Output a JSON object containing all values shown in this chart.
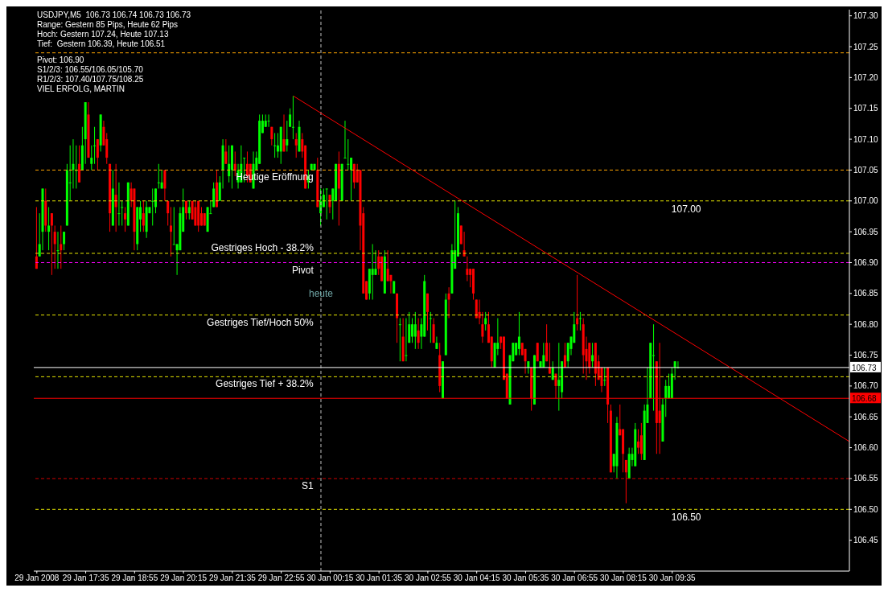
{
  "chart_data": {
    "type": "candlestick",
    "title": "USDJPY,M5  106.73 106.74 106.73 106.73",
    "annotations": [
      "Range: Gestern 85 Pips, Heute 62 Pips",
      "Hoch: Gestern 107.24, Heute 107.13",
      "Tief:  Gestern 106.39, Heute 106.51",
      "Pivot: 106.90",
      "S1/2/3: 106.55/106.05/105.70",
      "R1/2/3: 107.40/107.75/108.25",
      "VIEL ERFOLG, MARTIN",
      {
        "text": "heute",
        "x": "2008-01-30T00:00",
        "y": 106.85
      }
    ],
    "colors": [
      "#ff0000",
      "#00ff00",
      "#00ff00",
      "#ff0000",
      "#00ff00",
      "#ff0000",
      "#ff0000",
      "#00ff00",
      "#ff0000",
      "#00ff00",
      "#00ff00",
      "#00ff00",
      "#00ff00",
      "#00ff00",
      "#ff0000",
      "#00ff00",
      "#00ff00",
      "#ff0000",
      "#00ff00",
      "#00ff00",
      "#ff0000",
      "#00ff00",
      "#ff0000",
      "#ff0000",
      "#ff0000",
      "#00ff00",
      "#ff0000",
      "#00ff00",
      "#00ff00",
      "#ff0000",
      "#00ff00",
      "#ff0000",
      "#ff0000",
      "#00ff00",
      "#00ff00",
      "#ff0000",
      "#00ff00",
      "#00ff00",
      "#00ff00",
      "#00ff00",
      "#00ff00",
      "#00ff00",
      "#ff0000",
      "#ff0000",
      "#ff0000",
      "#00ff00",
      "#00ff00",
      "#00ff00",
      "#00ff00",
      "#ff0000",
      "#00ff00",
      "#ff0000",
      "#ff0000",
      "#ff0000",
      "#ff0000",
      "#ff0000",
      "#00ff00",
      "#00ff00",
      "#00ff00",
      "#ff0000",
      "#00ff00",
      "#00ff00",
      "#ff0000",
      "#00ff00",
      "#00ff00",
      "#ff0000",
      "#00ff00",
      "#00ff00",
      "#00ff00",
      "#ff0000",
      "#ff0000",
      "#00ff00",
      "#00ff00",
      "#00ff00",
      "#00ff00",
      "#00ff00",
      "#00ff00",
      "#ff0000",
      "#00ff00",
      "#00ff00",
      "#00ff00",
      "#ff0000",
      "#00ff00",
      "#00ff00",
      "#00ff00",
      "#ff0000",
      "#00ff00",
      "#ff0000",
      "#ff0000",
      "#00ff00",
      "#00ff00",
      "#00ff00",
      "#ff0000",
      "#00ff00",
      "#00ff00",
      "#00ff00",
      "#ff0000",
      "#00ff00",
      "#00ff00",
      "#ff0000",
      "#00ff00",
      "#00ff00",
      "#00ff00",
      "#00ff00",
      "#ff0000",
      "#ff0000",
      "#ff0000",
      "#ff0000",
      "#ff0000",
      "#00ff00",
      "#00ff00",
      "#00ff00",
      "#ff0000",
      "#ff0000",
      "#00ff00",
      "#ff0000",
      "#ff0000",
      "#00ff00",
      "#ff0000",
      "#00ff00",
      "#ff0000",
      "#00ff00",
      "#00ff00",
      "#00ff00",
      "#00ff00",
      "#ff0000",
      "#00ff00",
      "#00ff00",
      "#ff0000",
      "#00ff00",
      "#ff0000",
      "#00ff00",
      "#ff0000",
      "#00ff00",
      "#00ff00",
      "#ff0000",
      "#00ff00",
      "#00ff00",
      "#00ff00",
      "#ff0000",
      "#ff0000",
      "#ff0000",
      "#ff0000",
      "#ff0000",
      "#ff0000",
      "#ff0000",
      "#ff0000",
      "#00ff00",
      "#ff0000",
      "#ff0000",
      "#00ff00",
      "#00ff00",
      "#ff0000",
      "#ff0000",
      "#ff0000",
      "#00ff00",
      "#00ff00",
      "#00ff00",
      "#00ff00",
      "#ff0000",
      "#ff0000",
      "#00ff00",
      "#ff0000",
      "#00ff00",
      "#ff0000",
      "#00ff00",
      "#00ff00",
      "#ff0000",
      "#ff0000",
      "#00ff00",
      "#ff0000",
      "#00ff00",
      "#00ff00",
      "#ff0000",
      "#00ff00",
      "#00ff00",
      "#00ff00",
      "#ff0000",
      "#00ff00",
      "#ff0000",
      "#ff0000",
      "#ff0000",
      "#00ff00",
      "#ff0000",
      "#ff0000",
      "#ff0000",
      "#00ff00",
      "#ff0000",
      "#ff0000",
      "#00ff00",
      "#00ff00",
      "#ff0000",
      "#ff0000",
      "#ff0000",
      "#00ff00",
      "#00ff00",
      "#00ff00",
      "#ff0000",
      "#ff0000",
      "#00ff00",
      "#00ff00",
      "#00ff00",
      "#00ff00",
      "#ff0000",
      "#ff0000",
      "#00ff00",
      "#00ff00",
      "#00ff00",
      "#00ff00",
      "#00ff00",
      "#00ff00"
    ],
    "x": [
      "2008-01-29T16:15",
      "2008-01-29T16:20",
      "2008-01-29T16:25",
      "2008-01-29T16:30",
      "2008-01-29T16:35",
      "2008-01-29T16:40",
      "2008-01-29T16:45",
      "2008-01-29T16:50",
      "2008-01-29T16:55",
      "2008-01-29T17:00",
      "2008-01-29T17:05",
      "2008-01-29T17:10",
      "2008-01-29T17:15",
      "2008-01-29T17:20",
      "2008-01-29T17:25",
      "2008-01-29T17:30",
      "2008-01-29T17:35",
      "2008-01-29T17:40",
      "2008-01-29T17:45",
      "2008-01-29T17:50",
      "2008-01-29T17:55",
      "2008-01-29T18:00",
      "2008-01-29T18:05",
      "2008-01-29T18:10",
      "2008-01-29T18:15",
      "2008-01-29T18:20",
      "2008-01-29T18:25",
      "2008-01-29T18:30",
      "2008-01-29T18:35",
      "2008-01-29T18:40",
      "2008-01-29T18:45",
      "2008-01-29T18:50",
      "2008-01-29T18:55",
      "2008-01-29T19:00",
      "2008-01-29T19:05",
      "2008-01-29T19:10",
      "2008-01-29T19:15",
      "2008-01-29T19:20",
      "2008-01-29T19:25",
      "2008-01-29T19:30",
      "2008-01-29T19:35",
      "2008-01-29T19:40",
      "2008-01-29T19:45",
      "2008-01-29T19:50",
      "2008-01-29T19:55",
      "2008-01-29T20:00",
      "2008-01-29T20:05",
      "2008-01-29T20:10",
      "2008-01-29T20:15",
      "2008-01-29T20:20",
      "2008-01-29T20:25",
      "2008-01-29T20:30",
      "2008-01-29T20:35",
      "2008-01-29T20:40",
      "2008-01-29T20:45",
      "2008-01-29T20:50",
      "2008-01-29T20:55",
      "2008-01-29T21:00",
      "2008-01-29T21:05",
      "2008-01-29T21:10",
      "2008-01-29T21:15",
      "2008-01-29T21:20",
      "2008-01-29T21:25",
      "2008-01-29T21:30",
      "2008-01-29T21:35",
      "2008-01-29T21:40",
      "2008-01-29T21:45",
      "2008-01-29T21:50",
      "2008-01-29T21:55",
      "2008-01-29T22:00",
      "2008-01-29T22:05",
      "2008-01-29T22:10",
      "2008-01-29T22:15",
      "2008-01-29T22:20",
      "2008-01-29T22:25",
      "2008-01-29T22:30",
      "2008-01-29T22:35",
      "2008-01-29T22:40",
      "2008-01-29T22:45",
      "2008-01-29T22:50",
      "2008-01-29T22:55",
      "2008-01-29T23:00",
      "2008-01-29T23:05",
      "2008-01-29T23:10",
      "2008-01-29T23:15",
      "2008-01-29T23:20",
      "2008-01-29T23:25",
      "2008-01-29T23:30",
      "2008-01-29T23:35",
      "2008-01-29T23:40",
      "2008-01-29T23:45",
      "2008-01-29T23:50",
      "2008-01-29T23:55",
      "2008-01-30T00:00",
      "2008-01-30T00:05",
      "2008-01-30T00:10",
      "2008-01-30T00:15",
      "2008-01-30T00:20",
      "2008-01-30T00:25",
      "2008-01-30T00:30",
      "2008-01-30T00:35",
      "2008-01-30T00:40",
      "2008-01-30T00:45",
      "2008-01-30T00:50",
      "2008-01-30T00:55",
      "2008-01-30T01:00",
      "2008-01-30T01:05",
      "2008-01-30T01:10",
      "2008-01-30T01:15",
      "2008-01-30T01:20",
      "2008-01-30T01:25",
      "2008-01-30T01:30",
      "2008-01-30T01:35",
      "2008-01-30T01:40",
      "2008-01-30T01:45",
      "2008-01-30T01:50",
      "2008-01-30T01:55",
      "2008-01-30T02:00",
      "2008-01-30T02:05",
      "2008-01-30T02:10",
      "2008-01-30T02:15",
      "2008-01-30T02:20",
      "2008-01-30T02:25",
      "2008-01-30T02:30",
      "2008-01-30T02:35",
      "2008-01-30T02:40",
      "2008-01-30T02:45",
      "2008-01-30T02:50",
      "2008-01-30T02:55",
      "2008-01-30T03:00",
      "2008-01-30T03:05",
      "2008-01-30T03:10",
      "2008-01-30T03:15",
      "2008-01-30T03:20",
      "2008-01-30T03:25",
      "2008-01-30T03:30",
      "2008-01-30T03:35",
      "2008-01-30T03:40",
      "2008-01-30T03:45",
      "2008-01-30T03:50",
      "2008-01-30T03:55",
      "2008-01-30T04:00",
      "2008-01-30T04:05",
      "2008-01-30T04:10",
      "2008-01-30T04:15",
      "2008-01-30T04:20",
      "2008-01-30T04:25",
      "2008-01-30T04:30",
      "2008-01-30T04:35",
      "2008-01-30T04:40",
      "2008-01-30T04:45",
      "2008-01-30T04:50",
      "2008-01-30T04:55",
      "2008-01-30T05:00",
      "2008-01-30T05:05",
      "2008-01-30T05:10",
      "2008-01-30T05:15",
      "2008-01-30T05:20",
      "2008-01-30T05:25",
      "2008-01-30T05:30",
      "2008-01-30T05:35",
      "2008-01-30T05:40",
      "2008-01-30T05:45",
      "2008-01-30T05:50",
      "2008-01-30T05:55",
      "2008-01-30T06:00",
      "2008-01-30T06:05",
      "2008-01-30T06:10",
      "2008-01-30T06:15",
      "2008-01-30T06:20",
      "2008-01-30T06:25",
      "2008-01-30T06:30",
      "2008-01-30T06:35",
      "2008-01-30T06:40",
      "2008-01-30T06:45",
      "2008-01-30T06:50",
      "2008-01-30T06:55",
      "2008-01-30T07:00",
      "2008-01-30T07:05",
      "2008-01-30T07:10",
      "2008-01-30T07:15",
      "2008-01-30T07:20",
      "2008-01-30T07:25",
      "2008-01-30T07:30",
      "2008-01-30T07:35",
      "2008-01-30T07:40",
      "2008-01-30T07:45",
      "2008-01-30T07:50",
      "2008-01-30T07:55",
      "2008-01-30T08:00",
      "2008-01-30T08:05",
      "2008-01-30T08:10",
      "2008-01-30T08:15",
      "2008-01-30T08:20",
      "2008-01-30T08:25",
      "2008-01-30T08:30",
      "2008-01-30T08:35",
      "2008-01-30T08:40",
      "2008-01-30T08:45",
      "2008-01-30T08:50",
      "2008-01-30T08:55",
      "2008-01-30T09:00",
      "2008-01-30T09:05",
      "2008-01-30T09:10",
      "2008-01-30T09:15",
      "2008-01-30T09:20",
      "2008-01-30T09:25",
      "2008-01-30T09:30",
      "2008-01-30T09:35",
      "2008-01-30T09:40",
      "2008-01-30T09:45"
    ],
    "ohlc": [
      [
        106.91,
        106.99,
        106.89,
        106.89
      ],
      [
        106.91,
        106.98,
        106.91,
        106.93
      ],
      [
        106.95,
        107.02,
        106.92,
        107.02
      ],
      [
        107.0,
        107.02,
        106.95,
        106.96
      ],
      [
        106.95,
        106.99,
        106.92,
        106.96
      ],
      [
        106.98,
        106.98,
        106.88,
        106.96
      ],
      [
        106.95,
        106.96,
        106.89,
        106.93
      ],
      [
        106.92,
        106.95,
        106.89,
        106.92
      ],
      [
        106.93,
        106.96,
        106.89,
        106.92
      ],
      [
        106.93,
        106.95,
        106.92,
        106.95
      ],
      [
        106.96,
        107.06,
        106.96,
        107.05
      ],
      [
        107.03,
        107.09,
        107.0,
        107.03
      ],
      [
        107.05,
        107.1,
        107.02,
        107.06
      ],
      [
        107.05,
        107.09,
        107.02,
        107.05
      ],
      [
        107.06,
        107.09,
        107.03,
        107.03
      ],
      [
        107.05,
        107.12,
        107.05,
        107.09
      ],
      [
        107.1,
        107.16,
        107.06,
        107.16
      ],
      [
        107.14,
        107.16,
        107.07,
        107.07
      ],
      [
        107.06,
        107.09,
        107.05,
        107.07
      ],
      [
        107.09,
        107.12,
        107.06,
        107.09
      ],
      [
        107.1,
        107.1,
        107.05,
        107.07
      ],
      [
        107.09,
        107.14,
        107.08,
        107.14
      ],
      [
        107.12,
        107.13,
        107.09,
        107.09
      ],
      [
        107.1,
        107.11,
        107.06,
        107.07
      ],
      [
        107.06,
        107.06,
        106.95,
        106.98
      ],
      [
        106.96,
        107.05,
        106.96,
        107.02
      ],
      [
        107.01,
        107.06,
        106.95,
        106.99
      ],
      [
        106.98,
        107.03,
        106.96,
        106.98
      ],
      [
        106.99,
        107.0,
        106.96,
        106.99
      ],
      [
        106.98,
        106.99,
        106.95,
        106.97
      ],
      [
        106.96,
        107.03,
        106.96,
        107.03
      ],
      [
        107.02,
        107.03,
        106.99,
        107.0
      ],
      [
        107.02,
        107.02,
        106.92,
        106.95
      ],
      [
        106.93,
        106.99,
        106.92,
        106.99
      ],
      [
        106.97,
        107.0,
        106.95,
        106.99
      ],
      [
        106.98,
        107.0,
        106.95,
        106.96
      ],
      [
        106.95,
        107.0,
        106.94,
        106.99
      ],
      [
        106.98,
        106.99,
        106.98,
        106.99
      ],
      [
        107.0,
        107.02,
        106.96,
        107.0
      ],
      [
        106.99,
        107.02,
        106.98,
        107.02
      ],
      [
        107.03,
        107.06,
        107.02,
        107.03
      ],
      [
        107.02,
        107.05,
        107.02,
        107.03
      ],
      [
        107.05,
        107.05,
        107.0,
        107.02
      ],
      [
        107.0,
        107.0,
        106.96,
        106.98
      ],
      [
        106.96,
        106.99,
        106.91,
        106.95
      ],
      [
        106.93,
        106.99,
        106.93,
        106.93
      ],
      [
        106.92,
        106.93,
        106.88,
        106.93
      ],
      [
        106.92,
        106.99,
        106.92,
        106.98
      ],
      [
        106.95,
        107.02,
        106.95,
        106.99
      ],
      [
        107.0,
        107.0,
        106.97,
        106.98
      ],
      [
        106.98,
        107.0,
        106.97,
        106.99
      ],
      [
        107.0,
        107.0,
        106.97,
        106.97
      ],
      [
        106.99,
        107.0,
        106.96,
        106.96
      ],
      [
        107.0,
        107.0,
        106.95,
        106.96
      ],
      [
        106.98,
        106.99,
        106.96,
        106.96
      ],
      [
        106.98,
        106.98,
        106.96,
        106.96
      ],
      [
        106.95,
        106.99,
        106.95,
        106.99
      ],
      [
        106.98,
        107.0,
        106.98,
        106.98
      ],
      [
        106.99,
        107.03,
        106.99,
        107.02
      ],
      [
        107.03,
        107.05,
        106.99,
        106.99
      ],
      [
        107.0,
        107.04,
        107.0,
        107.03
      ],
      [
        107.05,
        107.1,
        107.02,
        107.09
      ],
      [
        107.08,
        107.1,
        107.06,
        107.06
      ],
      [
        107.04,
        107.09,
        107.03,
        107.06
      ],
      [
        107.05,
        107.09,
        107.02,
        107.09
      ],
      [
        107.06,
        107.08,
        107.04,
        107.05
      ],
      [
        107.03,
        107.06,
        107.02,
        107.05
      ],
      [
        107.03,
        107.09,
        107.03,
        107.06
      ],
      [
        107.07,
        107.07,
        107.03,
        107.07
      ],
      [
        107.06,
        107.08,
        107.03,
        107.04
      ],
      [
        107.06,
        107.06,
        107.03,
        107.03
      ],
      [
        107.02,
        107.08,
        107.02,
        107.06
      ],
      [
        107.05,
        107.08,
        107.05,
        107.07
      ],
      [
        107.06,
        107.14,
        107.06,
        107.13
      ],
      [
        107.11,
        107.14,
        107.11,
        107.13
      ],
      [
        107.12,
        107.14,
        107.12,
        107.13
      ],
      [
        107.13,
        107.14,
        107.12,
        107.13
      ],
      [
        107.12,
        107.12,
        107.09,
        107.1
      ],
      [
        107.09,
        107.11,
        107.07,
        107.09
      ],
      [
        107.08,
        107.11,
        107.07,
        107.09
      ],
      [
        107.08,
        107.12,
        107.06,
        107.12
      ],
      [
        107.1,
        107.14,
        107.08,
        107.08
      ],
      [
        107.09,
        107.13,
        107.08,
        107.1
      ],
      [
        107.12,
        107.15,
        107.12,
        107.14
      ],
      [
        107.12,
        107.17,
        107.1,
        107.12
      ],
      [
        107.1,
        107.11,
        107.07,
        107.09
      ],
      [
        107.08,
        107.13,
        107.08,
        107.12
      ],
      [
        107.1,
        107.11,
        107.07,
        107.08
      ],
      [
        107.09,
        107.09,
        107.02,
        107.02
      ],
      [
        107.03,
        107.05,
        107.02,
        107.04
      ],
      [
        107.05,
        107.06,
        107.05,
        107.06
      ],
      [
        107.05,
        107.06,
        107.05,
        107.06
      ],
      [
        107.05,
        107.07,
        106.99,
        106.99
      ],
      [
        106.98,
        107.02,
        106.96,
        107.0
      ],
      [
        106.99,
        107.02,
        106.99,
        107.01
      ],
      [
        107.02,
        107.02,
        106.97,
        107.02
      ],
      [
        107.01,
        107.01,
        106.98,
        106.99
      ],
      [
        107.0,
        107.02,
        106.97,
        107.02
      ],
      [
        107.0,
        107.06,
        107.0,
        107.06
      ],
      [
        107.06,
        107.08,
        106.96,
        107.02
      ],
      [
        107.0,
        107.06,
        107.0,
        107.06
      ],
      [
        107.07,
        107.13,
        107.07,
        107.07
      ],
      [
        107.06,
        107.1,
        107.05,
        107.06
      ],
      [
        107.05,
        107.07,
        107.0,
        107.07
      ],
      [
        107.06,
        107.06,
        107.02,
        107.03
      ],
      [
        107.05,
        107.06,
        107.03,
        107.03
      ],
      [
        107.05,
        107.05,
        106.92,
        106.96
      ],
      [
        106.98,
        106.99,
        106.85,
        106.85
      ],
      [
        106.87,
        106.87,
        106.84,
        106.84
      ],
      [
        106.85,
        106.89,
        106.84,
        106.89
      ],
      [
        106.88,
        106.93,
        106.84,
        106.89
      ],
      [
        106.88,
        106.92,
        106.88,
        106.89
      ],
      [
        106.91,
        106.92,
        106.88,
        106.89
      ],
      [
        106.91,
        106.91,
        106.87,
        106.87
      ],
      [
        106.85,
        106.92,
        106.85,
        106.91
      ],
      [
        106.89,
        106.92,
        106.87,
        106.87
      ],
      [
        106.88,
        106.88,
        106.85,
        106.87
      ],
      [
        106.85,
        106.87,
        106.85,
        106.87
      ],
      [
        106.85,
        106.85,
        106.77,
        106.81
      ],
      [
        106.8,
        106.81,
        106.74,
        106.8
      ],
      [
        106.78,
        106.81,
        106.74,
        106.74
      ],
      [
        106.75,
        106.81,
        106.74,
        106.75
      ],
      [
        106.77,
        106.82,
        106.77,
        106.8
      ],
      [
        106.78,
        106.81,
        106.77,
        106.8
      ],
      [
        106.78,
        106.82,
        106.76,
        106.8
      ],
      [
        106.79,
        106.81,
        106.76,
        106.77
      ],
      [
        106.78,
        106.81,
        106.76,
        106.8
      ],
      [
        106.78,
        106.88,
        106.78,
        106.87
      ],
      [
        106.85,
        106.85,
        106.79,
        106.82
      ],
      [
        106.81,
        106.82,
        106.77,
        106.81
      ],
      [
        106.8,
        106.81,
        106.77,
        106.77
      ],
      [
        106.76,
        106.78,
        106.76,
        106.77
      ],
      [
        106.75,
        106.77,
        106.69,
        106.7
      ],
      [
        106.68,
        106.74,
        106.68,
        106.74
      ],
      [
        106.75,
        106.85,
        106.75,
        106.84
      ],
      [
        106.85,
        106.86,
        106.81,
        106.84
      ],
      [
        106.85,
        106.93,
        106.85,
        106.92
      ],
      [
        106.89,
        107.0,
        106.89,
        106.92
      ],
      [
        106.91,
        106.99,
        106.91,
        106.98
      ],
      [
        106.96,
        106.96,
        106.93,
        106.93
      ],
      [
        106.92,
        106.95,
        106.91,
        106.91
      ],
      [
        106.89,
        106.91,
        106.87,
        106.88
      ],
      [
        106.89,
        106.89,
        106.86,
        106.88
      ],
      [
        106.89,
        106.89,
        106.84,
        106.85
      ],
      [
        106.84,
        106.84,
        106.81,
        106.81
      ],
      [
        106.82,
        106.84,
        106.8,
        106.81
      ],
      [
        106.8,
        106.82,
        106.77,
        106.78
      ],
      [
        106.8,
        106.82,
        106.79,
        106.81
      ],
      [
        106.8,
        106.82,
        106.77,
        106.77
      ],
      [
        106.78,
        106.78,
        106.73,
        106.74
      ],
      [
        106.73,
        106.77,
        106.73,
        106.77
      ],
      [
        106.76,
        106.81,
        106.75,
        106.77
      ],
      [
        106.78,
        106.78,
        106.76,
        106.77
      ],
      [
        106.78,
        106.78,
        106.71,
        106.71
      ],
      [
        106.72,
        106.72,
        106.68,
        106.68
      ],
      [
        106.67,
        106.75,
        106.67,
        106.75
      ],
      [
        106.74,
        106.77,
        106.74,
        106.77
      ],
      [
        106.75,
        106.77,
        106.75,
        106.77
      ],
      [
        106.76,
        106.82,
        106.75,
        106.78
      ],
      [
        106.77,
        106.77,
        106.75,
        106.75
      ],
      [
        106.76,
        106.76,
        106.72,
        106.74
      ],
      [
        106.73,
        106.74,
        106.72,
        106.74
      ],
      [
        106.73,
        106.73,
        106.66,
        106.68
      ],
      [
        106.67,
        106.75,
        106.67,
        106.75
      ],
      [
        106.77,
        106.77,
        106.74,
        106.74
      ],
      [
        106.73,
        106.74,
        106.73,
        106.74
      ],
      [
        106.73,
        106.77,
        106.73,
        106.75
      ],
      [
        106.77,
        106.8,
        106.74,
        106.74
      ],
      [
        106.73,
        106.77,
        106.72,
        106.72
      ],
      [
        106.71,
        106.74,
        106.71,
        106.73
      ],
      [
        106.72,
        106.72,
        106.68,
        106.7
      ],
      [
        106.7,
        106.77,
        106.66,
        106.71
      ],
      [
        106.69,
        106.74,
        106.68,
        106.74
      ],
      [
        106.75,
        106.77,
        106.73,
        106.73
      ],
      [
        106.74,
        106.77,
        106.73,
        106.77
      ],
      [
        106.76,
        106.78,
        106.75,
        106.78
      ],
      [
        106.77,
        106.82,
        106.77,
        106.8
      ],
      [
        106.81,
        106.88,
        106.79,
        106.8
      ],
      [
        106.81,
        106.82,
        106.79,
        106.81
      ],
      [
        106.8,
        106.81,
        106.72,
        106.75
      ],
      [
        106.76,
        106.78,
        106.71,
        106.74
      ],
      [
        106.77,
        106.77,
        106.72,
        106.73
      ],
      [
        106.74,
        106.77,
        106.73,
        106.75
      ],
      [
        106.77,
        106.77,
        106.7,
        106.72
      ],
      [
        106.74,
        106.75,
        106.71,
        106.71
      ],
      [
        106.73,
        106.73,
        106.69,
        106.7
      ],
      [
        106.71,
        106.73,
        106.7,
        106.71
      ],
      [
        106.73,
        106.73,
        106.64,
        106.67
      ],
      [
        106.66,
        106.67,
        106.56,
        106.56
      ],
      [
        106.57,
        106.59,
        106.56,
        106.59
      ],
      [
        106.57,
        106.65,
        106.55,
        106.64
      ],
      [
        106.63,
        106.67,
        106.62,
        106.62
      ],
      [
        106.63,
        106.63,
        106.56,
        106.59
      ],
      [
        106.58,
        106.58,
        106.51,
        106.56
      ],
      [
        106.55,
        106.6,
        106.55,
        106.59
      ],
      [
        106.58,
        106.6,
        106.57,
        106.59
      ],
      [
        106.57,
        106.64,
        106.57,
        106.63
      ],
      [
        106.61,
        106.63,
        106.59,
        106.6
      ],
      [
        106.62,
        106.64,
        106.58,
        106.59
      ],
      [
        106.58,
        106.67,
        106.58,
        106.66
      ],
      [
        106.64,
        106.73,
        106.64,
        106.67
      ],
      [
        106.68,
        106.77,
        106.68,
        106.77
      ],
      [
        106.75,
        106.8,
        106.66,
        106.75
      ],
      [
        106.74,
        106.74,
        106.59,
        106.64
      ],
      [
        106.66,
        106.77,
        106.59,
        106.64
      ],
      [
        106.61,
        106.68,
        106.61,
        106.67
      ],
      [
        106.68,
        106.71,
        106.65,
        106.7
      ],
      [
        106.68,
        106.72,
        106.68,
        106.7
      ],
      [
        106.68,
        106.73,
        106.68,
        106.72
      ],
      [
        106.73,
        106.74,
        106.71,
        106.74
      ],
      [
        106.73,
        106.74,
        106.73,
        106.73
      ]
    ],
    "series": [
      {
        "type": "line",
        "color": "#ff0000",
        "x": [
          "2008-01-29T23:15",
          "2008-01-30T14:25"
        ],
        "values": [
          107.17,
          106.61
        ]
      }
    ],
    "xlim": [
      "2008-01-29T16:10",
      "2008-01-30T14:25"
    ],
    "xticks": [
      {
        "value": "2008-01-29T16:15",
        "label": "29 Jan 2008"
      },
      {
        "value": "2008-01-29T17:35",
        "label": "29 Jan 17:35"
      },
      {
        "value": "2008-01-29T18:55",
        "label": "29 Jan 18:55"
      },
      {
        "value": "2008-01-29T20:15",
        "label": "29 Jan 20:15"
      },
      {
        "value": "2008-01-29T21:35",
        "label": "29 Jan 21:35"
      },
      {
        "value": "2008-01-29T22:55",
        "label": "29 Jan 22:55"
      },
      {
        "value": "2008-01-30T00:15",
        "label": "30 Jan 00:15"
      },
      {
        "value": "2008-01-30T01:35",
        "label": "30 Jan 01:35"
      },
      {
        "value": "2008-01-30T02:55",
        "label": "30 Jan 02:55"
      },
      {
        "value": "2008-01-30T04:15",
        "label": "30 Jan 04:15"
      },
      {
        "value": "2008-01-30T05:35",
        "label": "30 Jan 05:35"
      },
      {
        "value": "2008-01-30T06:55",
        "label": "30 Jan 06:55"
      },
      {
        "value": "2008-01-30T08:15",
        "label": "30 Jan 08:15"
      },
      {
        "value": "2008-01-30T09:35",
        "label": "30 Jan 09:35"
      }
    ],
    "ylim": [
      106.4,
      107.31
    ],
    "yticks": [
      106.45,
      {
        "value": 106.5,
        "label": "106.50"
      },
      106.55,
      {
        "value": 106.6,
        "label": "106.60"
      },
      106.65,
      {
        "value": 106.7,
        "label": "106.70"
      },
      106.75,
      {
        "value": 106.8,
        "label": "106.80"
      },
      106.85,
      {
        "value": 106.9,
        "label": "106.90"
      },
      106.95,
      {
        "value": 107,
        "label": "107.00"
      },
      107.05,
      {
        "value": 107.1,
        "label": "107.10"
      },
      107.15,
      {
        "value": 107.2,
        "label": "107.20"
      },
      107.25,
      {
        "value": 107.3,
        "label": "107.30"
      }
    ],
    "ref_lines": [
      {
        "axis": "y",
        "value": 107.24,
        "color": "#ffa500",
        "line_style": "dashed"
      },
      {
        "axis": "y",
        "value": 107.05,
        "label": "Heutige Eröffnung",
        "color": "#ffa500",
        "line_style": "dashed"
      },
      {
        "axis": "y",
        "value": 107.0,
        "label": "107.00",
        "color": "#e6e600",
        "line_style": "dashed"
      },
      {
        "axis": "y",
        "value": 106.915,
        "label": "Gestriges Hoch - 38.2%",
        "color": "#e6e600",
        "line_style": "dashed"
      },
      {
        "axis": "y",
        "value": 106.9,
        "label": "Pivot",
        "color": "#ff00ff",
        "line_style": "dashed"
      },
      {
        "axis": "y",
        "value": 106.815,
        "label": "Gestriges Tief/Hoch 50%",
        "color": "#e6e600",
        "line_style": "dashed"
      },
      {
        "axis": "y",
        "value": 106.73,
        "label": "106.73",
        "color": "#ffffff",
        "line_style": "solid"
      },
      {
        "axis": "y",
        "value": 106.715,
        "label": "Gestriges Tief + 38.2%",
        "color": "#e6e600",
        "line_style": "dashed"
      },
      {
        "axis": "y",
        "value": 106.68,
        "label": "106.68",
        "color": "#ff0000",
        "line_style": "solid"
      },
      {
        "axis": "y",
        "value": 106.55,
        "label": "S1",
        "color": "#cc0000",
        "line_style": "dashed"
      },
      {
        "axis": "y",
        "value": 106.5,
        "label": "106.50",
        "color": "#e6e600",
        "line_style": "dashed"
      },
      {
        "axis": "x",
        "value": "2008-01-30T00:00",
        "color": "#c0c0c0",
        "line_style": "dashed"
      }
    ]
  }
}
